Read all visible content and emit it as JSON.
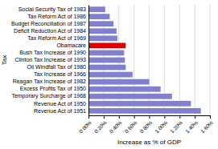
{
  "chart_data": {
    "type": "bar",
    "orientation": "horizontal",
    "categories": [
      "Revenue Act of 1951",
      "Revenue Act of 1950",
      "Temporary Surcharge of 1968",
      "Excess Profits Tax of 1950",
      "Reagan Tax Increase of 1982",
      "Tax Increase of 1966",
      "Oil Windfall Tax of 1980",
      "Clinton Tax Increase of 1993",
      "Bush Tax Increase of 1990",
      "Obamacare",
      "Tax Reform Act of 1969",
      "Deficit Reduction Act of 1984",
      "Budget Reconciliation of 1987",
      "Tax Reform Act of 1986",
      "Social Security Tax of 1983"
    ],
    "values": [
      1.48,
      1.35,
      1.1,
      0.95,
      0.8,
      0.58,
      0.49,
      0.48,
      0.47,
      0.49,
      0.38,
      0.37,
      0.33,
      0.28,
      0.22
    ],
    "colors": [
      "#8080cc",
      "#8080cc",
      "#8080cc",
      "#8080cc",
      "#8080cc",
      "#8080cc",
      "#8080cc",
      "#8080cc",
      "#8080cc",
      "#dd0000",
      "#8080cc",
      "#8080cc",
      "#8080cc",
      "#8080cc",
      "#8080cc"
    ],
    "xlabel": "Increase as % of GDP",
    "ylabel": "Tax",
    "xlim": [
      0,
      1.6
    ],
    "xticks": [
      {
        "value": 0.0,
        "label": "0.00%"
      },
      {
        "value": 0.2,
        "label": "0.20%"
      },
      {
        "value": 0.4,
        "label": "0.40%"
      },
      {
        "value": 0.6,
        "label": "0.60%"
      },
      {
        "value": 0.8,
        "label": "0.80%"
      },
      {
        "value": 1.0,
        "label": "1.00%"
      },
      {
        "value": 1.2,
        "label": "1.20%"
      },
      {
        "value": 1.4,
        "label": "1.40%"
      },
      {
        "value": 1.6,
        "label": "1.60%"
      }
    ],
    "grid": true
  }
}
